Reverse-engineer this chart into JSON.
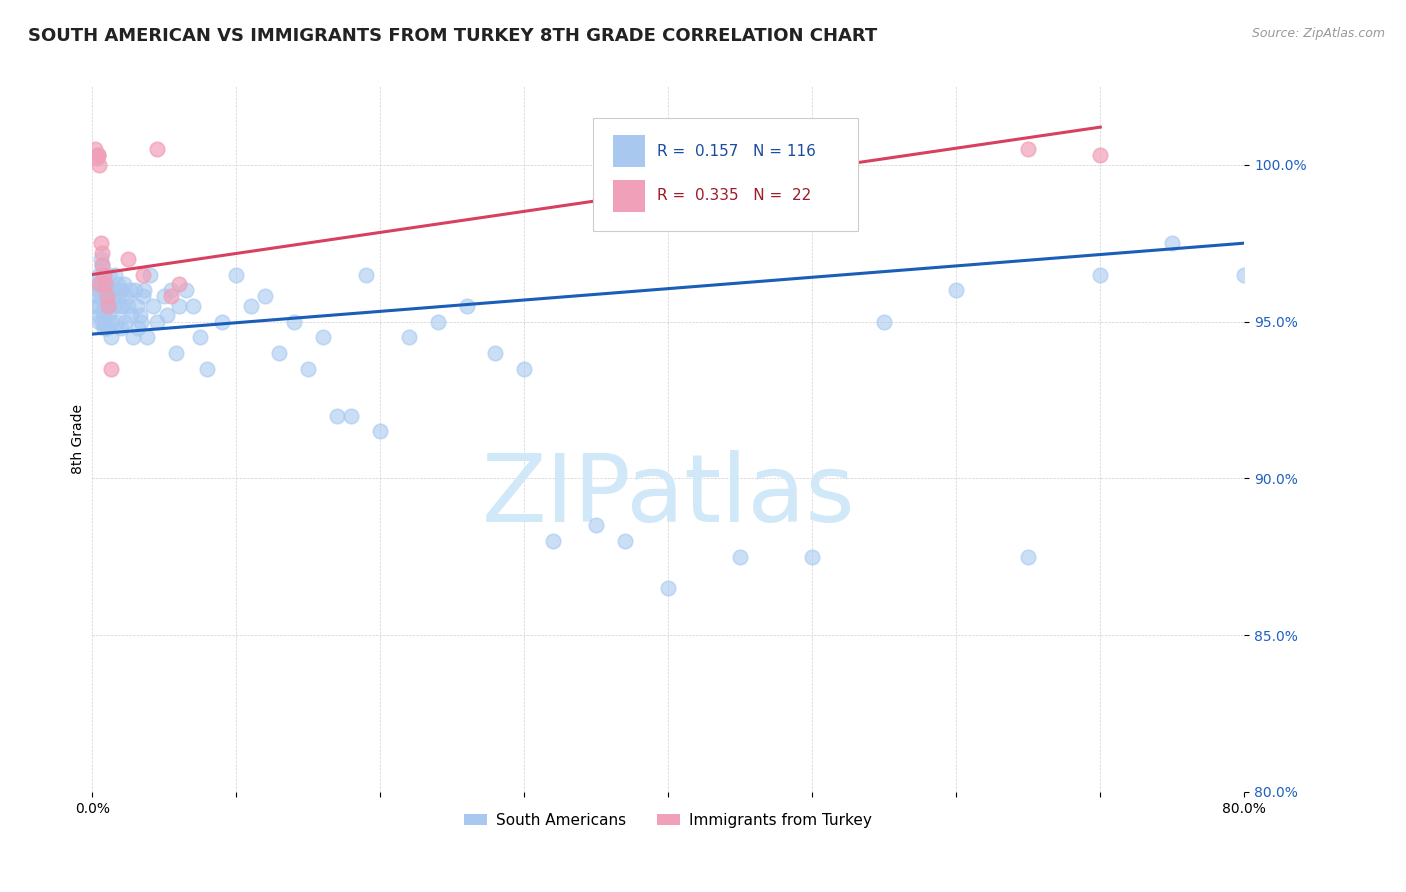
{
  "title": "SOUTH AMERICAN VS IMMIGRANTS FROM TURKEY 8TH GRADE CORRELATION CHART",
  "source": "Source: ZipAtlas.com",
  "ylabel": "8th Grade",
  "x_min": 0.0,
  "x_max": 80.0,
  "y_min": 80.0,
  "y_max": 102.5,
  "blue_R": 0.157,
  "blue_N": 116,
  "pink_R": 0.335,
  "pink_N": 22,
  "blue_color": "#a8c8f0",
  "pink_color": "#f0a0b8",
  "blue_line_color": "#1a5eb8",
  "pink_line_color": "#d84060",
  "legend_label_blue": "South Americans",
  "legend_label_pink": "Immigrants from Turkey",
  "watermark": "ZIPatlas",
  "watermark_color": "#d0e8f8",
  "blue_scatter_x": [
    0.2,
    0.3,
    0.3,
    0.4,
    0.4,
    0.5,
    0.5,
    0.5,
    0.6,
    0.6,
    0.6,
    0.7,
    0.7,
    0.7,
    0.8,
    0.8,
    0.8,
    0.8,
    0.9,
    0.9,
    0.9,
    1.0,
    1.0,
    1.0,
    1.0,
    1.1,
    1.1,
    1.2,
    1.2,
    1.3,
    1.3,
    1.4,
    1.5,
    1.5,
    1.6,
    1.7,
    1.8,
    1.8,
    1.9,
    2.0,
    2.0,
    2.1,
    2.2,
    2.3,
    2.4,
    2.5,
    2.6,
    2.7,
    2.8,
    3.0,
    3.1,
    3.2,
    3.3,
    3.4,
    3.5,
    3.6,
    3.8,
    4.0,
    4.2,
    4.5,
    5.0,
    5.2,
    5.5,
    5.8,
    6.0,
    6.5,
    7.0,
    7.5,
    8.0,
    9.0,
    10.0,
    11.0,
    12.0,
    13.0,
    14.0,
    15.0,
    16.0,
    17.0,
    18.0,
    19.0,
    20.0,
    22.0,
    24.0,
    26.0,
    28.0,
    30.0,
    32.0,
    35.0,
    37.0,
    40.0,
    45.0,
    50.0,
    55.0,
    60.0,
    65.0,
    70.0,
    75.0,
    80.0
  ],
  "blue_scatter_y": [
    95.5,
    95.8,
    96.2,
    96.0,
    95.5,
    95.2,
    96.5,
    95.0,
    95.8,
    96.2,
    97.0,
    96.5,
    95.0,
    96.8,
    95.5,
    96.0,
    95.2,
    94.8,
    95.5,
    95.0,
    96.0,
    95.5,
    94.8,
    96.2,
    95.8,
    95.5,
    96.0,
    95.2,
    96.5,
    95.0,
    94.5,
    95.8,
    95.5,
    96.0,
    96.5,
    95.0,
    95.8,
    96.2,
    95.5,
    96.0,
    94.8,
    95.5,
    96.2,
    95.0,
    95.8,
    95.5,
    96.0,
    95.2,
    94.5,
    96.0,
    95.5,
    94.8,
    95.2,
    95.0,
    95.8,
    96.0,
    94.5,
    96.5,
    95.5,
    95.0,
    95.8,
    95.2,
    96.0,
    94.0,
    95.5,
    96.0,
    95.5,
    94.5,
    93.5,
    95.0,
    96.5,
    95.5,
    95.8,
    94.0,
    95.0,
    93.5,
    94.5,
    92.0,
    92.0,
    96.5,
    91.5,
    94.5,
    95.0,
    95.5,
    94.0,
    93.5,
    88.0,
    88.5,
    88.0,
    86.5,
    87.5,
    87.5,
    95.0,
    96.0,
    87.5,
    96.5,
    97.5,
    96.5
  ],
  "pink_scatter_x": [
    0.2,
    0.3,
    0.4,
    0.4,
    0.5,
    0.5,
    0.6,
    0.7,
    0.7,
    0.8,
    0.9,
    1.0,
    1.1,
    1.3,
    2.5,
    3.5,
    4.5,
    5.5,
    6.0,
    65.0,
    70.0
  ],
  "pink_scatter_y": [
    100.5,
    100.2,
    100.3,
    100.3,
    100.0,
    96.2,
    97.5,
    97.2,
    96.8,
    96.5,
    96.2,
    95.8,
    95.5,
    93.5,
    97.0,
    96.5,
    100.5,
    95.8,
    96.2,
    100.5,
    100.3
  ],
  "blue_line_x0": 0.0,
  "blue_line_x1": 80.0,
  "blue_line_y0": 94.6,
  "blue_line_y1": 97.5,
  "pink_line_x0": 0.0,
  "pink_line_x1": 70.0,
  "pink_line_y0": 96.5,
  "pink_line_y1": 101.2,
  "y_ticks": [
    80.0,
    85.0,
    90.0,
    95.0,
    100.0
  ],
  "x_ticks": [
    0,
    10,
    20,
    30,
    40,
    50,
    60,
    70,
    80
  ],
  "title_fontsize": 13,
  "source_fontsize": 9,
  "axis_label_fontsize": 10,
  "tick_fontsize": 10,
  "watermark_fontsize": 68
}
